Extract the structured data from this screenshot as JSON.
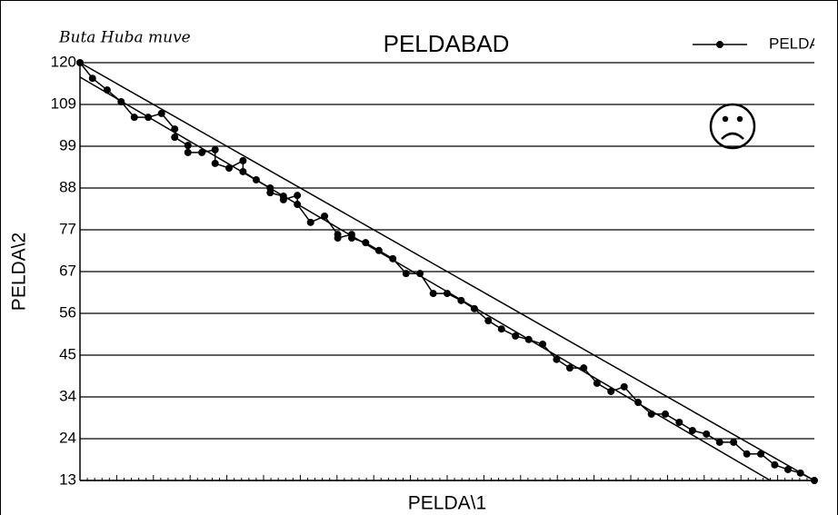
{
  "chart_data": {
    "type": "line",
    "title": "PELDABAD",
    "annotation": "Buta Huba muve",
    "xlabel": "PELDA\\1",
    "ylabel": "PELDA\\2",
    "xlim": [
      0,
      100
    ],
    "ylim": [
      13,
      120
    ],
    "yticks": [
      120,
      {
        "value": 109.3,
        "label": "109"
      },
      {
        "value": 98.6,
        "label": "99"
      },
      {
        "value": 87.9,
        "label": "88"
      },
      {
        "value": 77.2,
        "label": "77"
      },
      {
        "value": 66.5,
        "label": "67"
      },
      {
        "value": 55.8,
        "label": "56"
      },
      {
        "value": 45.1,
        "label": "45"
      },
      {
        "value": 34.4,
        "label": "34"
      },
      {
        "value": 23.7,
        "label": "24"
      },
      13
    ],
    "grid": true,
    "legend": "top-right",
    "series": [
      {
        "name": "PELDA",
        "color": "#000000",
        "x": [
          0,
          1.7,
          3.7,
          5.6,
          7.4,
          9.3,
          11.1,
          12.9,
          12.9,
          14.7,
          14.7,
          16.6,
          18.4,
          18.4,
          20.3,
          22.2,
          22.2,
          24.0,
          25.9,
          25.9,
          27.7,
          27.7,
          29.6,
          29.6,
          31.4,
          33.3,
          35.1,
          35.1,
          37.0,
          37.0,
          38.9,
          40.7,
          42.6,
          44.4,
          46.3,
          48.1,
          50.0,
          51.9,
          53.7,
          55.6,
          57.4,
          59.3,
          61.1,
          63.0,
          64.9,
          66.7,
          68.6,
          70.4,
          72.3,
          74.1,
          76.0,
          77.8,
          79.7,
          81.6,
          83.4,
          85.3,
          87.1,
          89.0,
          90.8,
          92.7,
          94.6,
          96.4,
          98.1,
          100
        ],
        "values": [
          120,
          116.0,
          113.0,
          110.0,
          106.0,
          106.0,
          107.0,
          103.0,
          100.9,
          98.8,
          97.0,
          97.0,
          97.7,
          94.2,
          93.0,
          94.9,
          92.1,
          90.0,
          87.9,
          86.7,
          85.8,
          84.9,
          86.0,
          83.7,
          79.1,
          80.7,
          76.0,
          75.1,
          76.0,
          75.1,
          73.9,
          71.9,
          69.8,
          66.0,
          66.0,
          60.9,
          60.9,
          59.1,
          57.0,
          53.9,
          51.8,
          50.0,
          49.1,
          47.9,
          44.0,
          41.8,
          41.8,
          37.9,
          35.8,
          37.0,
          33.0,
          30.0,
          30.0,
          27.9,
          25.8,
          24.9,
          22.8,
          22.8,
          19.8,
          19.8,
          17.0,
          15.8,
          14.9,
          13
        ]
      }
    ],
    "lines": [
      {
        "x": [
          0,
          100
        ],
        "values": [
          120,
          13
        ]
      },
      {
        "x": [
          0,
          94
        ],
        "values": [
          116.3,
          13
        ]
      }
    ]
  }
}
